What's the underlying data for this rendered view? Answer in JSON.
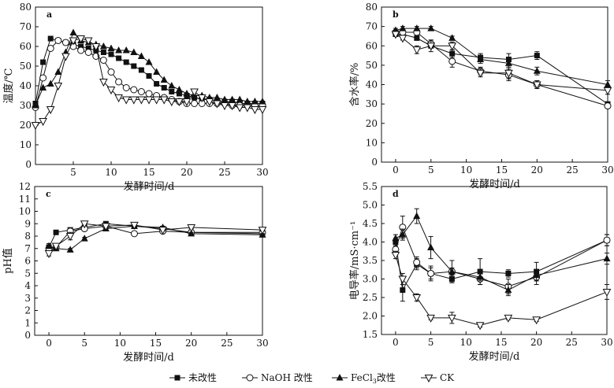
{
  "legend": {
    "items": [
      {
        "label": "未改性",
        "marker": "square-filled"
      },
      {
        "label": "NaOH 改性",
        "marker": "circle-open"
      },
      {
        "label": "FeCl",
        "sub": "3",
        "after": "改性",
        "marker": "triangle-up-filled"
      },
      {
        "label": "CK",
        "marker": "triangle-down-open"
      }
    ]
  },
  "chart_data": [
    {
      "id": "a",
      "panel_label": "a",
      "type": "line",
      "xlabel": "发酵时间/d",
      "ylabel": "温度/℃",
      "xlim": [
        0,
        30
      ],
      "ylim": [
        0,
        80
      ],
      "xticks": [
        5,
        10,
        15,
        20,
        25,
        30
      ],
      "xtick_labels": [
        "5",
        "10",
        "15",
        "20",
        "25",
        "30"
      ],
      "yticks": [
        0,
        10,
        20,
        30,
        40,
        50,
        60,
        70,
        80
      ],
      "ytick_labels": [
        "0",
        "10",
        "20",
        "30",
        "40",
        "50",
        "60",
        "70",
        "80"
      ],
      "series": [
        {
          "name": "未改性",
          "marker": "square-filled",
          "x": [
            0,
            1,
            2,
            3,
            4,
            5,
            6,
            7,
            8,
            9,
            10,
            11,
            12,
            13,
            14,
            15,
            16,
            17,
            18,
            19,
            20,
            21,
            22,
            23,
            24,
            25,
            26,
            27,
            28,
            29,
            30
          ],
          "y": [
            31,
            52,
            64,
            63,
            62,
            61,
            60,
            59,
            58,
            57,
            56,
            54,
            52,
            50,
            48,
            45,
            41,
            39,
            37,
            36,
            35,
            34,
            33,
            33,
            32,
            32,
            32,
            31,
            31,
            31,
            31
          ]
        },
        {
          "name": "NaOH 改性",
          "marker": "circle-open",
          "x": [
            0,
            1,
            2,
            3,
            4,
            5,
            6,
            7,
            8,
            9,
            10,
            11,
            12,
            13,
            14,
            15,
            16,
            17,
            18,
            19,
            20,
            21,
            22,
            23,
            24,
            25,
            26,
            27,
            28,
            29,
            30
          ],
          "y": [
            29,
            44,
            59,
            63,
            62,
            60,
            58,
            57,
            55,
            53,
            47,
            42,
            39,
            38,
            37,
            36,
            35,
            34,
            33,
            32,
            31,
            31,
            31,
            31,
            31,
            31,
            30,
            30,
            30,
            30,
            30
          ]
        },
        {
          "name": "FeCl3改性",
          "marker": "triangle-up-filled",
          "x": [
            0,
            1,
            2,
            3,
            4,
            5,
            6,
            7,
            8,
            9,
            10,
            11,
            12,
            13,
            14,
            15,
            16,
            17,
            18,
            19,
            20,
            21,
            22,
            23,
            24,
            25,
            26,
            27,
            28,
            29,
            30
          ],
          "y": [
            30,
            39,
            41,
            47,
            57,
            67,
            63,
            62,
            61,
            60,
            59,
            58,
            58,
            57,
            55,
            52,
            47,
            43,
            40,
            38,
            36,
            35,
            35,
            34,
            34,
            33,
            33,
            33,
            32,
            32,
            32
          ]
        },
        {
          "name": "CK",
          "marker": "triangle-down-open",
          "x": [
            0,
            1,
            2,
            3,
            4,
            5,
            6,
            7,
            8,
            9,
            10,
            11,
            12,
            13,
            14,
            15,
            16,
            17,
            18,
            19,
            20,
            21,
            22,
            23,
            24,
            25,
            26,
            27,
            28,
            29,
            30
          ],
          "y": [
            20,
            22,
            28,
            40,
            55,
            63,
            64,
            63,
            60,
            42,
            38,
            34,
            33,
            33,
            33,
            33,
            33,
            33,
            32,
            32,
            32,
            37,
            34,
            32,
            31,
            30,
            30,
            29,
            29,
            28,
            28
          ]
        }
      ]
    },
    {
      "id": "b",
      "panel_label": "b",
      "type": "line",
      "xlabel": "发酵时间/d",
      "ylabel": "含水率/%",
      "xlim": [
        -2,
        30
      ],
      "ylim": [
        0,
        80
      ],
      "xticks": [
        0,
        5,
        10,
        15,
        20,
        25,
        30
      ],
      "xtick_labels": [
        "0",
        "5",
        "10",
        "15",
        "20",
        "25",
        "30"
      ],
      "yticks": [
        0,
        10,
        20,
        30,
        40,
        50,
        60,
        70,
        80
      ],
      "ytick_labels": [
        "0",
        "10",
        "20",
        "30",
        "40",
        "50",
        "60",
        "70",
        "80"
      ],
      "series": [
        {
          "name": "未改性",
          "marker": "square-filled",
          "x": [
            0,
            1,
            3,
            5,
            8,
            12,
            16,
            20,
            30
          ],
          "y": [
            66,
            66,
            64,
            60,
            56,
            54,
            53,
            55,
            30
          ],
          "err": [
            0,
            0,
            0,
            0,
            2,
            2,
            3,
            2,
            1
          ]
        },
        {
          "name": "NaOH 改性",
          "marker": "circle-open",
          "x": [
            0,
            1,
            3,
            5,
            8,
            12,
            16,
            20,
            30
          ],
          "y": [
            67,
            67,
            67,
            61,
            52,
            47,
            45,
            40,
            29
          ],
          "err": [
            1,
            1,
            1,
            2,
            3,
            2,
            3,
            2,
            1
          ]
        },
        {
          "name": "FeCl3改性",
          "marker": "triangle-up-filled",
          "x": [
            0,
            1,
            3,
            5,
            8,
            12,
            16,
            20,
            30
          ],
          "y": [
            68,
            69,
            69,
            69,
            64,
            53,
            51,
            47,
            40
          ],
          "err": [
            1,
            1,
            1,
            1,
            1,
            2,
            2,
            2,
            2
          ]
        },
        {
          "name": "CK",
          "marker": "triangle-down-open",
          "x": [
            0,
            1,
            3,
            5,
            8,
            12,
            16,
            20,
            30
          ],
          "y": [
            66,
            64,
            58,
            60,
            60,
            46,
            46,
            40,
            37
          ],
          "err": [
            1,
            1,
            2,
            3,
            2,
            2,
            3,
            2,
            2
          ]
        }
      ]
    },
    {
      "id": "c",
      "panel_label": "c",
      "type": "line",
      "xlabel": "发酵时间/d",
      "ylabel": "pH值",
      "xlim": [
        -2,
        30
      ],
      "ylim": [
        0,
        12
      ],
      "xticks": [
        0,
        5,
        10,
        15,
        20,
        25,
        30
      ],
      "xtick_labels": [
        "0",
        "5",
        "10",
        "15",
        "20",
        "25",
        "30"
      ],
      "yticks": [
        0,
        1,
        2,
        3,
        4,
        5,
        6,
        7,
        8,
        9,
        10,
        11,
        12
      ],
      "ytick_labels": [
        "0",
        "1",
        "2",
        "3",
        "4",
        "5",
        "6",
        "7",
        "8",
        "9",
        "10",
        "11",
        "12"
      ],
      "series": [
        {
          "name": "未改性",
          "marker": "square-filled",
          "x": [
            0,
            1,
            3,
            5,
            8,
            12,
            16,
            20,
            30
          ],
          "y": [
            7.1,
            8.3,
            8.5,
            8.7,
            9.0,
            8.8,
            8.6,
            8.3,
            8.2
          ],
          "err": [
            0.2,
            0.1,
            0.1,
            0.1,
            0.1,
            0.1,
            0.1,
            0.1,
            0.1
          ]
        },
        {
          "name": "NaOH 改性",
          "marker": "circle-open",
          "x": [
            0,
            1,
            3,
            5,
            8,
            12,
            16,
            20,
            30
          ],
          "y": [
            7.0,
            7.1,
            8.4,
            8.6,
            8.8,
            8.2,
            8.4,
            8.3,
            8.3
          ],
          "err": [
            0.2,
            0.1,
            0.1,
            0.1,
            0.1,
            0.1,
            0.1,
            0.1,
            0.1
          ]
        },
        {
          "name": "FeCl3改性",
          "marker": "triangle-up-filled",
          "x": [
            0,
            1,
            3,
            5,
            8,
            12,
            16,
            20,
            30
          ],
          "y": [
            7.2,
            7.0,
            6.9,
            7.8,
            8.6,
            8.8,
            8.7,
            8.2,
            8.1
          ],
          "err": [
            0.2,
            0.1,
            0.1,
            0.1,
            0.1,
            0.1,
            0.1,
            0.1,
            0.1
          ]
        },
        {
          "name": "CK",
          "marker": "triangle-down-open",
          "x": [
            0,
            1,
            3,
            5,
            8,
            12,
            16,
            20,
            30
          ],
          "y": [
            6.6,
            7.2,
            8.0,
            9.0,
            8.8,
            8.9,
            8.5,
            8.7,
            8.5
          ],
          "err": [
            0.2,
            0.1,
            0.3,
            0.1,
            0.1,
            0.1,
            0.1,
            0.1,
            0.1
          ]
        }
      ]
    },
    {
      "id": "d",
      "panel_label": "d",
      "type": "line",
      "xlabel": "发酵时间/d",
      "ylabel": "电导率/mS·cm⁻¹",
      "xlim": [
        -2,
        30
      ],
      "ylim": [
        1.5,
        5.5
      ],
      "xticks": [
        0,
        5,
        10,
        15,
        20,
        25,
        30
      ],
      "xtick_labels": [
        "0",
        "5",
        "10",
        "15",
        "20",
        "25",
        "30"
      ],
      "yticks": [
        1.5,
        2.0,
        2.5,
        3.0,
        3.5,
        4.0,
        4.5,
        5.0,
        5.5
      ],
      "ytick_labels": [
        "1.5",
        "2.0",
        "2.5",
        "3.0",
        "3.5",
        "4.0",
        "4.5",
        "5.0",
        "5.5"
      ],
      "series": [
        {
          "name": "未改性",
          "marker": "square-filled",
          "x": [
            0,
            1,
            3,
            5,
            8,
            12,
            16,
            20,
            30
          ],
          "y": [
            4.0,
            2.7,
            3.4,
            3.15,
            3.0,
            3.2,
            3.15,
            3.2,
            4.05
          ],
          "err": [
            0.1,
            0.3,
            0.15,
            0.15,
            0.1,
            0.35,
            0.1,
            0.25,
            0.15
          ]
        },
        {
          "name": "NaOH 改性",
          "marker": "circle-open",
          "x": [
            0,
            1,
            3,
            5,
            8,
            12,
            16,
            20,
            30
          ],
          "y": [
            3.8,
            4.4,
            3.45,
            3.15,
            3.2,
            3.0,
            2.8,
            3.05,
            4.05
          ],
          "err": [
            0.1,
            0.3,
            0.15,
            0.2,
            0.1,
            0.15,
            0.2,
            0.2,
            0.15
          ]
        },
        {
          "name": "FeCl3改性",
          "marker": "triangle-up-filled",
          "x": [
            0,
            1,
            3,
            5,
            8,
            12,
            16,
            20,
            30
          ],
          "y": [
            4.1,
            4.2,
            4.7,
            3.85,
            3.2,
            3.05,
            2.7,
            3.1,
            3.55
          ],
          "err": [
            0.1,
            0.15,
            0.2,
            0.3,
            0.3,
            0.1,
            0.15,
            0.15,
            0.15
          ]
        },
        {
          "name": "CK",
          "marker": "triangle-down-open",
          "x": [
            0,
            1,
            3,
            5,
            8,
            12,
            16,
            20,
            30
          ],
          "y": [
            3.65,
            3.0,
            2.5,
            1.95,
            1.95,
            1.75,
            1.95,
            1.9,
            2.65
          ],
          "err": [
            0.1,
            0.15,
            0.1,
            0.05,
            0.15,
            0.05,
            0.05,
            0.05,
            0.2
          ]
        }
      ]
    }
  ]
}
